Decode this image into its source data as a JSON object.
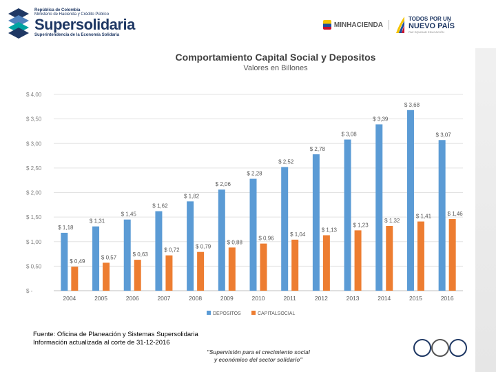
{
  "header": {
    "org_line1": "República de Colombia",
    "org_line2": "Ministerio de Hacienda y Crédito Público",
    "brand": "Supersolidaria",
    "brand_sub": "Superintendencia de la Economía Solidaria",
    "ministry": "MINHACIENDA",
    "slogan_top": "TODOS POR UN",
    "slogan_main": "NUEVO PAÍS",
    "slogan_small": "PAZ  EQUIDAD  EDUCACIÓN"
  },
  "chart_data": {
    "type": "bar",
    "title": "Comportamiento Capital Social y Depositos",
    "subtitle": "Valores en Billones",
    "categories": [
      "2004",
      "2005",
      "2006",
      "2007",
      "2008",
      "2009",
      "2010",
      "2011",
      "2012",
      "2013",
      "2014",
      "2015",
      "2016"
    ],
    "series": [
      {
        "name": "DEPOSITOS",
        "color": "#5b9bd5",
        "values": [
          1.18,
          1.31,
          1.45,
          1.62,
          1.82,
          2.06,
          2.28,
          2.52,
          2.78,
          3.08,
          3.39,
          3.68,
          3.07
        ],
        "labels": [
          "$ 1,18",
          "$ 1,31",
          "$ 1,45",
          "$ 1,62",
          "$ 1,82",
          "$ 2,06",
          "$ 2,28",
          "$ 2,52",
          "$ 2,78",
          "$ 3,08",
          "$ 3,39",
          "$ 3,68",
          "$ 3,07"
        ]
      },
      {
        "name": "CAPITALSOCIAL",
        "color": "#ed7d31",
        "values": [
          0.49,
          0.57,
          0.63,
          0.72,
          0.79,
          0.88,
          0.96,
          1.04,
          1.13,
          1.23,
          1.32,
          1.41,
          1.46
        ],
        "labels": [
          "$ 0,49",
          "$ 0,57",
          "$ 0,63",
          "$ 0,72",
          "$ 0,79",
          "$ 0,88",
          "$ 0,96",
          "$ 1,04",
          "$ 1,13",
          "$ 1,23",
          "$ 1,32",
          "$ 1,41",
          "$ 1,46"
        ]
      }
    ],
    "yticks": [
      0,
      0.5,
      1,
      1.5,
      2,
      2.5,
      3,
      3.5,
      4
    ],
    "ytick_labels": [
      "$ -",
      "$ 0,50",
      "$ 1,00",
      "$ 1,50",
      "$ 2,00",
      "$ 2,50",
      "$ 3,00",
      "$ 3,50",
      "$ 4,00"
    ],
    "ylim": [
      0,
      4
    ],
    "grid": true,
    "legend": "bottom"
  },
  "footer": {
    "source_line1": "Fuente: Oficina de Planeación y Sistemas Supersolidaria",
    "source_line2": "Información actualizada al corte de 31-12-2016",
    "slogan_line1": "\"Supervisión para el crecimiento social",
    "slogan_line2": "y económico del sector solidario\""
  }
}
